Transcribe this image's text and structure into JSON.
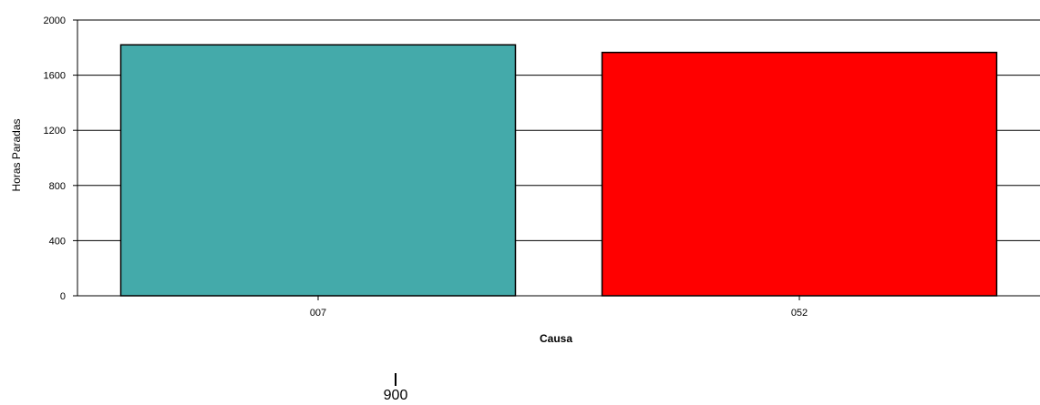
{
  "chart_data": {
    "type": "bar",
    "title": "",
    "xlabel": "Causa",
    "ylabel": "Horas Paradas",
    "categories": [
      "007",
      "052"
    ],
    "values": [
      1820,
      1765
    ],
    "colors": [
      "#44AAAA",
      "#FF0000"
    ],
    "ylim": [
      0,
      2000
    ],
    "yticks": [
      0,
      400,
      800,
      1200,
      1600,
      2000
    ],
    "grid": true,
    "legend": "none"
  },
  "footer": {
    "label": "900"
  }
}
